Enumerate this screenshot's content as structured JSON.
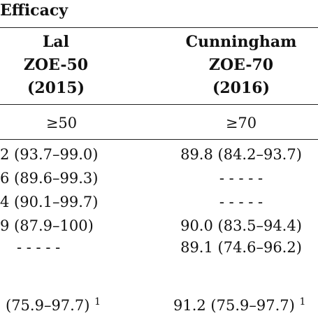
{
  "table": {
    "caption": "Efficacy",
    "columns": [
      {
        "author": "Lal",
        "vaccine": "ZOE-50",
        "year": "(2015)",
        "threshold": "≥50"
      },
      {
        "author": "Cunningham",
        "vaccine": "ZOE-70",
        "year": "(2016)",
        "threshold": "≥70"
      }
    ],
    "rows": [
      {
        "col1": "2 (93.7–99.0)",
        "col2": "89.8 (84.2–93.7)"
      },
      {
        "col1": "6 (89.6–99.3)",
        "col2": "- - - - -"
      },
      {
        "col1": "4 (90.1–99.7)",
        "col2": "- - - - -"
      },
      {
        "col1": "9 (87.9–100)",
        "col2": "90.0 (83.5–94.4)"
      },
      {
        "col1": "- - - - -",
        "col2": "89.1 (74.6–96.2)"
      }
    ],
    "footer_row": {
      "col1": "(75.9–97.7)",
      "col1_sup": "1",
      "col2": "91.2 (75.9–97.7)",
      "col2_sup": "1"
    }
  }
}
